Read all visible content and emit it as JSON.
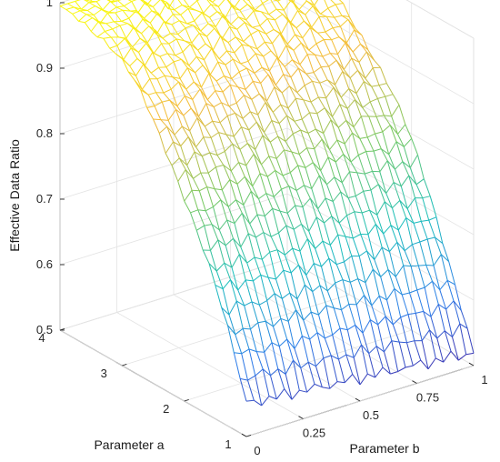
{
  "chart_data": {
    "type": "surface",
    "title": "",
    "xlabel": "Parameter a",
    "ylabel": "Parameter b",
    "zlabel": "Effective Data Ratio",
    "xlim": [
      1,
      4
    ],
    "ylim": [
      0,
      1
    ],
    "zlim": [
      0.5,
      1
    ],
    "xticks": [
      "1",
      "2",
      "3",
      "4"
    ],
    "yticks": [
      "0",
      "0.25",
      "0.5",
      "0.75",
      "1"
    ],
    "zticks": [
      "0.5",
      "0.6",
      "0.7",
      "0.8",
      "0.9",
      "1"
    ],
    "grid": true,
    "colormap": "parula",
    "colors": [
      "#3e26a8",
      "#2c7ce9",
      "#18bdbb",
      "#74c862",
      "#f3b93b",
      "#f9fb0e"
    ],
    "surface_model": "z = 1 - 0.45 * (1 - (a - 1) / 3)^2.2 - 0.03 * b, with small noise",
    "sample_points": [
      {
        "a": 1,
        "b": 0,
        "z": 0.55
      },
      {
        "a": 1,
        "b": 1,
        "z": 0.52
      },
      {
        "a": 2,
        "b": 0.5,
        "z": 0.78
      },
      {
        "a": 3,
        "b": 0.5,
        "z": 0.95
      },
      {
        "a": 4,
        "b": 0,
        "z": 0.99
      },
      {
        "a": 4,
        "b": 1,
        "z": 0.96
      }
    ]
  }
}
